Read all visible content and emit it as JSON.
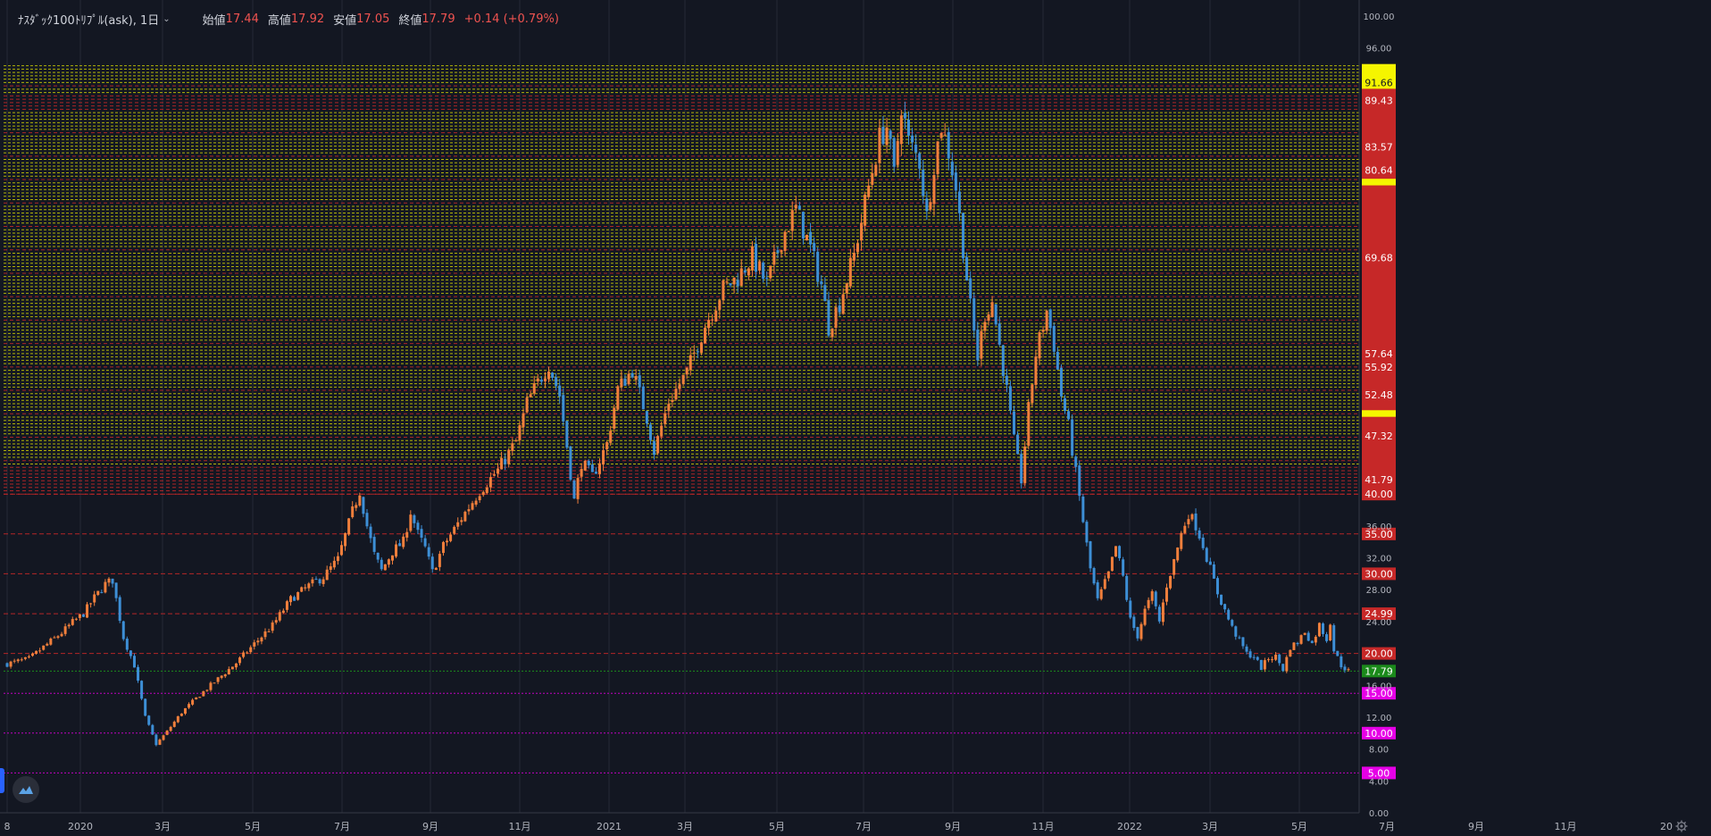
{
  "legend": {
    "symbol": "ﾅｽﾀﾞｯｸ100ﾄﾘﾌﾟﾙ(ask), 1日",
    "open_label": "始値",
    "open": "17.44",
    "high_label": "高値",
    "high": "17.92",
    "low_label": "安値",
    "low": "17.05",
    "close_label": "終値",
    "close": "17.79",
    "change": "+0.14 (+0.79%)"
  },
  "icons": {
    "logo": "tradingview-logo-icon",
    "settings": "gear-icon",
    "dropdown": "chevron-down-icon"
  },
  "colors": {
    "background": "#131722",
    "up": "#f07f3c",
    "down": "#3d8fd6",
    "red_line": "#c62828",
    "yellow_line": "#f5f500",
    "green_line": "#1b8a1b",
    "magenta_line": "#d200d2"
  },
  "chart_data": {
    "type": "candlestick",
    "x_axis_labels": [
      "8",
      "2020",
      "3月",
      "5月",
      "7月",
      "9月",
      "11月",
      "2021",
      "3月",
      "5月",
      "7月",
      "9月",
      "11月",
      "2022",
      "3月",
      "5月",
      "7月",
      "9月",
      "11月",
      "20"
    ],
    "y_ticks": [
      "100.00",
      "96.00",
      "36.00",
      "32.00",
      "28.00",
      "24.00",
      "16.00",
      "12.00",
      "8.00",
      "4.00",
      "0.00"
    ],
    "ylim": [
      0,
      100
    ],
    "current_price": {
      "value": 17.79,
      "label": "17.79"
    },
    "key_levels": [
      {
        "value": 40.0,
        "label": "40.00",
        "color": "red"
      },
      {
        "value": 35.0,
        "label": "35.00",
        "color": "red"
      },
      {
        "value": 30.0,
        "label": "30.00",
        "color": "red"
      },
      {
        "value": 24.99,
        "label": "24.99",
        "color": "red"
      },
      {
        "value": 20.0,
        "label": "20.00",
        "color": "red"
      },
      {
        "value": 15.0,
        "label": "15.00",
        "color": "magenta"
      },
      {
        "value": 10.0,
        "label": "10.00",
        "color": "magenta"
      },
      {
        "value": 5.0,
        "label": "5.00",
        "color": "magenta"
      }
    ],
    "zone_labels": [
      "91.66",
      "89.43",
      "83.57",
      "80.64",
      "69.68",
      "57.64",
      "55.92",
      "52.48",
      "47.32",
      "41.79"
    ],
    "grid_zone": {
      "from": 40.0,
      "to": 94.0
    },
    "series_anchors": [
      [
        0,
        18.7
      ],
      [
        6,
        19.3
      ],
      [
        10,
        20.8
      ],
      [
        15,
        22.6
      ],
      [
        18,
        23.9
      ],
      [
        21,
        25.0
      ],
      [
        24,
        27.0
      ],
      [
        27,
        28.7
      ],
      [
        29,
        29.2
      ],
      [
        32,
        22.0
      ],
      [
        35,
        18.5
      ],
      [
        38,
        12.0
      ],
      [
        41,
        8.6
      ],
      [
        44,
        10.2
      ],
      [
        48,
        12.6
      ],
      [
        53,
        14.8
      ],
      [
        58,
        16.8
      ],
      [
        63,
        18.8
      ],
      [
        68,
        21.2
      ],
      [
        73,
        23.5
      ],
      [
        78,
        26.8
      ],
      [
        83,
        28.5
      ],
      [
        87,
        29.6
      ],
      [
        91,
        31.8
      ],
      [
        95,
        37.8
      ],
      [
        97,
        40.4
      ],
      [
        99,
        36.0
      ],
      [
        101,
        32.4
      ],
      [
        103,
        30.4
      ],
      [
        106,
        32.8
      ],
      [
        109,
        34.0
      ],
      [
        111,
        37.8
      ],
      [
        113,
        35.0
      ],
      [
        115,
        33.2
      ],
      [
        117,
        30.2
      ],
      [
        120,
        33.5
      ],
      [
        125,
        37.0
      ],
      [
        130,
        40.4
      ],
      [
        135,
        43.0
      ],
      [
        140,
        46.6
      ],
      [
        143,
        51.4
      ],
      [
        146,
        54.0
      ],
      [
        149,
        56.3
      ],
      [
        152,
        52.4
      ],
      [
        154,
        46.0
      ],
      [
        156,
        39.2
      ],
      [
        158,
        44.0
      ],
      [
        161,
        42.2
      ],
      [
        165,
        46.3
      ],
      [
        168,
        53.2
      ],
      [
        172,
        55.6
      ],
      [
        176,
        49.6
      ],
      [
        178,
        45.4
      ],
      [
        182,
        51.6
      ],
      [
        187,
        55.3
      ],
      [
        192,
        61.2
      ],
      [
        197,
        65.8
      ],
      [
        201,
        67.2
      ],
      [
        205,
        69.8
      ],
      [
        209,
        66.3
      ],
      [
        213,
        72.0
      ],
      [
        217,
        75.8
      ],
      [
        221,
        70.8
      ],
      [
        224,
        66.3
      ],
      [
        226,
        61.0
      ],
      [
        229,
        64.0
      ],
      [
        233,
        70.0
      ],
      [
        237,
        78.6
      ],
      [
        240,
        84.6
      ],
      [
        242,
        86.2
      ],
      [
        244,
        80.0
      ],
      [
        246,
        89.0
      ],
      [
        248,
        84.2
      ],
      [
        251,
        81.8
      ],
      [
        253,
        74.8
      ],
      [
        255,
        81.6
      ],
      [
        257,
        86.3
      ],
      [
        259,
        83.0
      ],
      [
        261,
        78.5
      ],
      [
        263,
        71.0
      ],
      [
        265,
        63.4
      ],
      [
        267,
        57.2
      ],
      [
        269,
        62.6
      ],
      [
        271,
        64.2
      ],
      [
        273,
        58.6
      ],
      [
        275,
        53.0
      ],
      [
        277,
        46.6
      ],
      [
        279,
        41.8
      ],
      [
        281,
        50.6
      ],
      [
        283,
        57.6
      ],
      [
        286,
        63.0
      ],
      [
        288,
        58.7
      ],
      [
        290,
        52.4
      ],
      [
        292,
        48.5
      ],
      [
        294,
        42.6
      ],
      [
        296,
        36.6
      ],
      [
        298,
        30.6
      ],
      [
        300,
        26.6
      ],
      [
        303,
        30.0
      ],
      [
        305,
        33.4
      ],
      [
        307,
        29.6
      ],
      [
        309,
        24.2
      ],
      [
        311,
        22.2
      ],
      [
        313,
        25.4
      ],
      [
        315,
        27.4
      ],
      [
        317,
        24.0
      ],
      [
        319,
        28.6
      ],
      [
        321,
        31.6
      ],
      [
        323,
        35.0
      ],
      [
        325,
        37.6
      ],
      [
        327,
        36.1
      ],
      [
        329,
        33.6
      ],
      [
        331,
        30.6
      ],
      [
        333,
        27.6
      ],
      [
        335,
        25.4
      ],
      [
        337,
        23.2
      ],
      [
        339,
        21.6
      ],
      [
        341,
        20.0
      ],
      [
        343,
        19.6
      ],
      [
        345,
        18.2
      ],
      [
        347,
        19.4
      ],
      [
        349,
        19.6
      ],
      [
        351,
        18.0
      ],
      [
        353,
        20.8
      ],
      [
        355,
        21.4
      ],
      [
        357,
        22.8
      ],
      [
        359,
        21.2
      ],
      [
        361,
        23.6
      ],
      [
        363,
        21.8
      ],
      [
        364,
        24.0
      ],
      [
        365,
        20.4
      ],
      [
        367,
        18.5
      ],
      [
        369,
        17.79
      ]
    ]
  }
}
